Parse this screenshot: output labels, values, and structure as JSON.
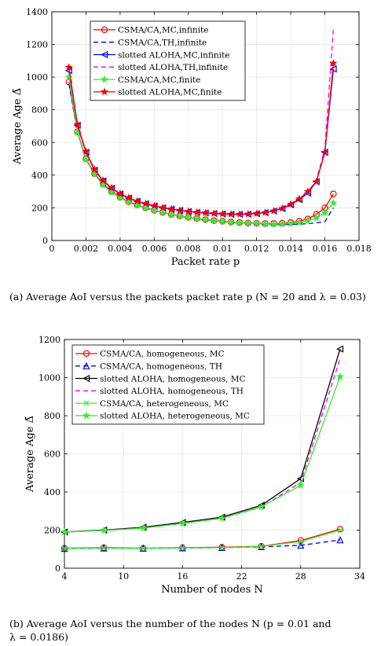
{
  "chart_data": [
    {
      "type": "line",
      "caption": "(a) Average AoI versus the packets packet rate p (N = 20 and λ = 0.03)",
      "xlabel": "Packet rate p",
      "ylabel": "Average Age Δ̄",
      "xlim": [
        0,
        0.018
      ],
      "ylim": [
        0,
        1400
      ],
      "xticks": [
        "0",
        "0.002",
        "0.004",
        "0.006",
        "0.008",
        "0.01",
        "0.012",
        "0.014",
        "0.016",
        "0.018"
      ],
      "yticks": [
        "0",
        "200",
        "400",
        "600",
        "800",
        "1000",
        "1200",
        "1400"
      ],
      "grid": true,
      "legend_position": "top-center",
      "x": [
        0.001,
        0.0015,
        0.002,
        0.0025,
        0.003,
        0.0035,
        0.004,
        0.0045,
        0.005,
        0.0055,
        0.006,
        0.0065,
        0.007,
        0.0075,
        0.008,
        0.0085,
        0.009,
        0.0095,
        0.01,
        0.0105,
        0.011,
        0.0115,
        0.012,
        0.0125,
        0.013,
        0.0135,
        0.014,
        0.0145,
        0.015,
        0.0155,
        0.016,
        0.0165
      ],
      "series": [
        {
          "name": "CSMA/CA,MC,infinite",
          "color": "#ff0000",
          "dash": "",
          "marker": "circle",
          "values": [
            970,
            665,
            500,
            410,
            345,
            300,
            265,
            238,
            218,
            200,
            185,
            172,
            160,
            150,
            142,
            135,
            128,
            122,
            118,
            113,
            110,
            107,
            105,
            104,
            104,
            106,
            110,
            118,
            132,
            160,
            200,
            285
          ]
        },
        {
          "name": "CSMA/CA,TH,infinite",
          "color": "#0000ee",
          "dash": "6,4",
          "marker": "none",
          "values": [
            960,
            660,
            495,
            405,
            340,
            295,
            262,
            235,
            215,
            197,
            182,
            169,
            158,
            148,
            140,
            133,
            126,
            120,
            115,
            110,
            106,
            103,
            100,
            98,
            97,
            97,
            98,
            100,
            103,
            108,
            115,
            200
          ]
        },
        {
          "name": "slotted ALOHA,MC,infinite",
          "color": "#0000ff",
          "dash": "",
          "marker": "triangle-left",
          "values": [
            1040,
            705,
            540,
            430,
            365,
            320,
            285,
            260,
            240,
            225,
            212,
            200,
            192,
            184,
            177,
            172,
            168,
            165,
            162,
            160,
            160,
            161,
            164,
            170,
            180,
            195,
            218,
            250,
            290,
            360,
            540,
            1050
          ]
        },
        {
          "name": "slotted ALOHA,TH,infinite",
          "color": "#ee00ee",
          "dash": "6,4",
          "marker": "none",
          "values": [
            1030,
            700,
            535,
            428,
            363,
            318,
            283,
            258,
            238,
            223,
            210,
            199,
            190,
            182,
            176,
            171,
            167,
            164,
            161,
            160,
            160,
            161,
            164,
            170,
            180,
            196,
            220,
            252,
            295,
            370,
            560,
            1300
          ]
        },
        {
          "name": "CSMA/CA,MC,finite",
          "color": "#33ee33",
          "dash": "",
          "marker": "star",
          "values": [
            1000,
            660,
            495,
            405,
            340,
            295,
            262,
            236,
            215,
            198,
            183,
            170,
            159,
            149,
            141,
            134,
            127,
            121,
            117,
            112,
            108,
            105,
            103,
            101,
            100,
            101,
            104,
            110,
            120,
            138,
            170,
            230
          ]
        },
        {
          "name": "slotted ALOHA,MC,finite",
          "color": "#ee0000",
          "dash": "",
          "marker": "star",
          "values": [
            1060,
            710,
            545,
            435,
            368,
            322,
            287,
            262,
            242,
            226,
            213,
            201,
            193,
            185,
            178,
            173,
            169,
            166,
            163,
            161,
            161,
            162,
            165,
            171,
            181,
            197,
            222,
            255,
            300,
            360,
            540,
            1085
          ]
        }
      ]
    },
    {
      "type": "line",
      "caption": "(b) Average AoI versus the number of the nodes N (p = 0.01 and λ = 0.0186)",
      "caption_line1": "(b) Average AoI versus the number of the nodes N (p = 0.01 and",
      "caption_line2": "λ = 0.0186)",
      "xlabel": "Number of nodes N",
      "ylabel": "Average Age Δ̄",
      "xlim": [
        4,
        34
      ],
      "ylim": [
        0,
        1200
      ],
      "xticks": [
        "4",
        "10",
        "16",
        "22",
        "28",
        "34"
      ],
      "yticks": [
        "0",
        "200",
        "400",
        "600",
        "800",
        "1000",
        "1200"
      ],
      "grid": true,
      "legend_position": "top-left",
      "x": [
        4,
        8,
        12,
        16,
        20,
        24,
        28,
        32
      ],
      "series": [
        {
          "name": "CSMA/CA, homogeneous, MC",
          "color": "#ff0000",
          "dash": "",
          "marker": "circle",
          "values": [
            105,
            108,
            105,
            108,
            110,
            115,
            145,
            205
          ]
        },
        {
          "name": "CSMA/CA, homogeneous, TH",
          "color": "#0000ee",
          "dash": "6,4",
          "marker": "triangle-up",
          "values": [
            103,
            105,
            104,
            106,
            108,
            112,
            120,
            148
          ]
        },
        {
          "name": "slotted ALOHA, homogeneous, MC",
          "color": "#000000",
          "dash": "",
          "marker": "triangle-left",
          "values": [
            190,
            200,
            215,
            240,
            268,
            330,
            470,
            1150
          ]
        },
        {
          "name": "slotted ALOHA, homogeneous, TH",
          "color": "#ee00ee",
          "dash": "6,4",
          "marker": "none",
          "values": [
            190,
            198,
            212,
            235,
            262,
            320,
            450,
            1100
          ]
        },
        {
          "name": "CSMA/CA, heterogeneous, MC",
          "color": "#33ee33",
          "dash": "",
          "marker": "x",
          "values": [
            104,
            106,
            104,
            107,
            108,
            114,
            140,
            200
          ]
        },
        {
          "name": "slotted ALOHA, heterogeneous, MC",
          "color": "#33ee33",
          "dash": "",
          "marker": "star",
          "values": [
            190,
            198,
            210,
            235,
            262,
            322,
            435,
            1005
          ]
        }
      ]
    }
  ]
}
